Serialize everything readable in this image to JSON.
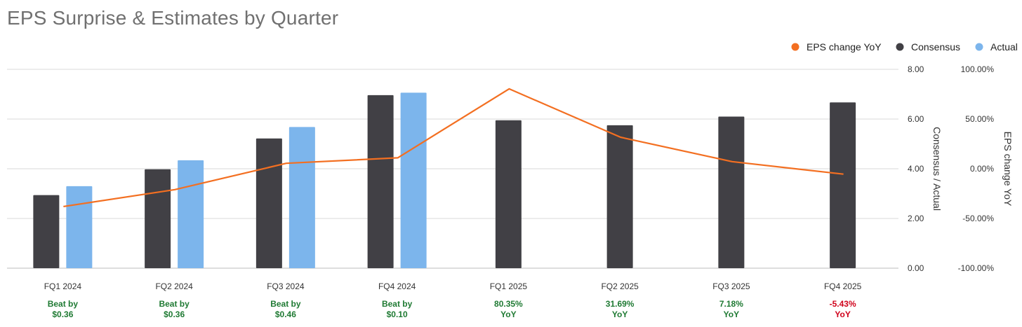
{
  "title": "EPS Surprise & Estimates by Quarter",
  "colors": {
    "consensus": "#414045",
    "actual": "#7cb5ec",
    "eps_change": "#f36f21",
    "beat": "#1f7a33",
    "miss": "#d0021b",
    "grid": "#d9d9d9",
    "title": "#707070"
  },
  "chart_data": {
    "type": "bar",
    "title": "EPS Surprise & Estimates by Quarter",
    "categories": [
      "FQ1 2024",
      "FQ2 2024",
      "FQ3 2024",
      "FQ4 2024",
      "FQ1 2025",
      "FQ2 2025",
      "FQ3 2025",
      "FQ4 2025"
    ],
    "legend": {
      "position": "top-right",
      "entries": [
        "EPS change YoY",
        "Consensus",
        "Actual"
      ]
    },
    "y_left": {
      "label": "Consensus / Actual",
      "range": [
        0,
        8
      ],
      "ticks": [
        "0.00",
        "2.00",
        "4.00",
        "6.00",
        "8.00"
      ]
    },
    "y_right": {
      "label": "EPS change YoY",
      "range": [
        -100,
        100
      ],
      "ticks": [
        "-100.00%",
        "-50.00%",
        "0.00%",
        "50.00%",
        "100.00%"
      ]
    },
    "grid": true,
    "series": [
      {
        "name": "Consensus",
        "type": "bar",
        "axis": "left",
        "values": [
          2.94,
          3.98,
          5.22,
          6.96,
          5.95,
          5.75,
          6.1,
          6.67
        ]
      },
      {
        "name": "Actual",
        "type": "bar",
        "axis": "left",
        "values": [
          3.3,
          4.34,
          5.68,
          7.06,
          null,
          null,
          null,
          null
        ]
      },
      {
        "name": "EPS change YoY",
        "type": "line",
        "axis": "right",
        "values": [
          -38.0,
          -21.0,
          5.5,
          11.0,
          80.35,
          31.69,
          7.18,
          -5.43
        ]
      }
    ],
    "annotations": [
      {
        "line1": "Beat by",
        "line2": "$0.36",
        "status": "beat"
      },
      {
        "line1": "Beat by",
        "line2": "$0.36",
        "status": "beat"
      },
      {
        "line1": "Beat by",
        "line2": "$0.46",
        "status": "beat"
      },
      {
        "line1": "Beat by",
        "line2": "$0.10",
        "status": "beat"
      },
      {
        "line1": "80.35%",
        "line2": "YoY",
        "status": "beat"
      },
      {
        "line1": "31.69%",
        "line2": "YoY",
        "status": "beat"
      },
      {
        "line1": "7.18%",
        "line2": "YoY",
        "status": "beat"
      },
      {
        "line1": "-5.43%",
        "line2": "YoY",
        "status": "miss"
      }
    ]
  }
}
